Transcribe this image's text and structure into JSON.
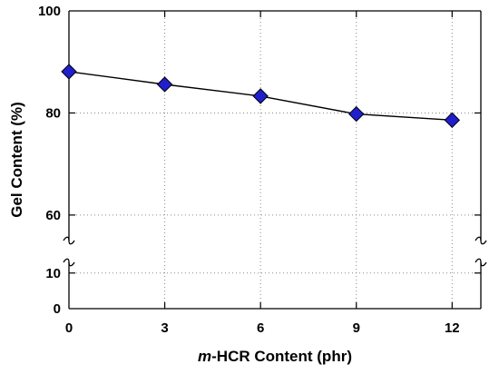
{
  "chart_data": {
    "type": "line",
    "xlabel": "m-HCR Content (phr)",
    "xlabel_italic_prefix": "m",
    "ylabel": "Gel Content (%)",
    "x": [
      0,
      3,
      6,
      9,
      12
    ],
    "series": [
      {
        "values": [
          88.1,
          85.6,
          83.3,
          79.8,
          78.6
        ]
      }
    ],
    "xlim": [
      0,
      12.9
    ],
    "xticks": [
      0,
      3,
      6,
      9,
      12
    ],
    "y_axis_break": true,
    "ylim_lower": [
      0,
      13
    ],
    "ylim_upper": [
      55,
      100
    ],
    "yticks_lower": [
      0,
      10
    ],
    "yticks_upper": [
      60,
      80,
      100
    ],
    "grid": true,
    "grid_style": "dotted",
    "legend": "none",
    "marker": "diamond",
    "marker_color": "#1f1fd1",
    "marker_edge_color": "#000000",
    "line_color": "#000000",
    "grid_color": "#8a8a8a"
  }
}
